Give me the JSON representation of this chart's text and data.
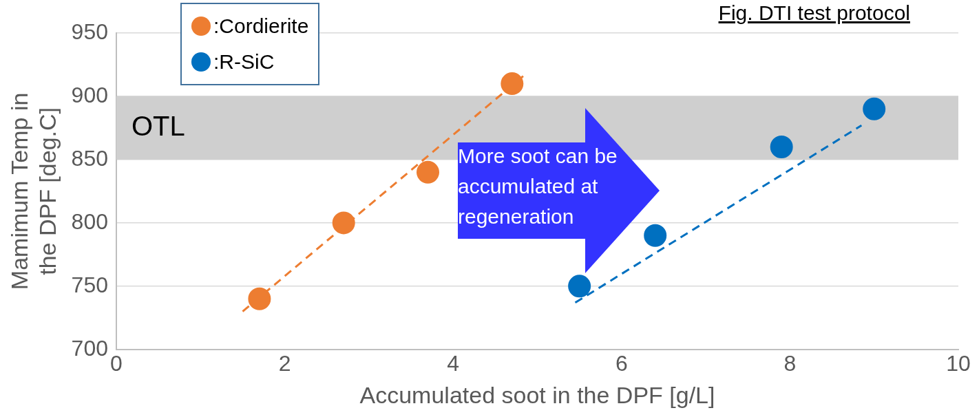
{
  "chart_data": {
    "type": "scatter",
    "title": "Fig. DTI test protocol",
    "xlabel": "Accumulated soot in the DPF [g/L]",
    "ylabel": "Mamimum Temp in the DPF [deg.C]",
    "xlim": [
      0,
      10
    ],
    "xticks": [
      0,
      2,
      4,
      6,
      8,
      10
    ],
    "ylim": [
      700,
      950
    ],
    "yticks": [
      700,
      750,
      800,
      850,
      900,
      950
    ],
    "grid": "y",
    "legend": "top left",
    "marker": "circle",
    "series": [
      {
        "name": ":Cordierite",
        "color": "#ed7d31",
        "x": [
          1.7,
          2.7,
          3.7,
          4.7
        ],
        "values": [
          740,
          800,
          840,
          910
        ]
      },
      {
        "name": ":R-SiC",
        "color": "#0070c0",
        "x": [
          5.5,
          6.4,
          7.9,
          9.0
        ],
        "values": [
          750,
          790,
          860,
          890
        ]
      },
      {
        "type": "line",
        "color": "#ed7d31",
        "line_style": "dashed",
        "marker": "none",
        "x": [
          1.5,
          4.85
        ],
        "values": [
          730,
          917
        ]
      },
      {
        "type": "line",
        "color": "#0070c0",
        "line_style": "dashed",
        "marker": "none",
        "x": [
          5.45,
          8.85
        ],
        "values": [
          737,
          877
        ]
      }
    ],
    "bands": [
      {
        "axis": "y",
        "from": 850,
        "to": 900,
        "label": "OTL",
        "color": "#cfcfcf"
      }
    ],
    "annotations": [
      "More soot can be accumulated at regeneration"
    ]
  }
}
